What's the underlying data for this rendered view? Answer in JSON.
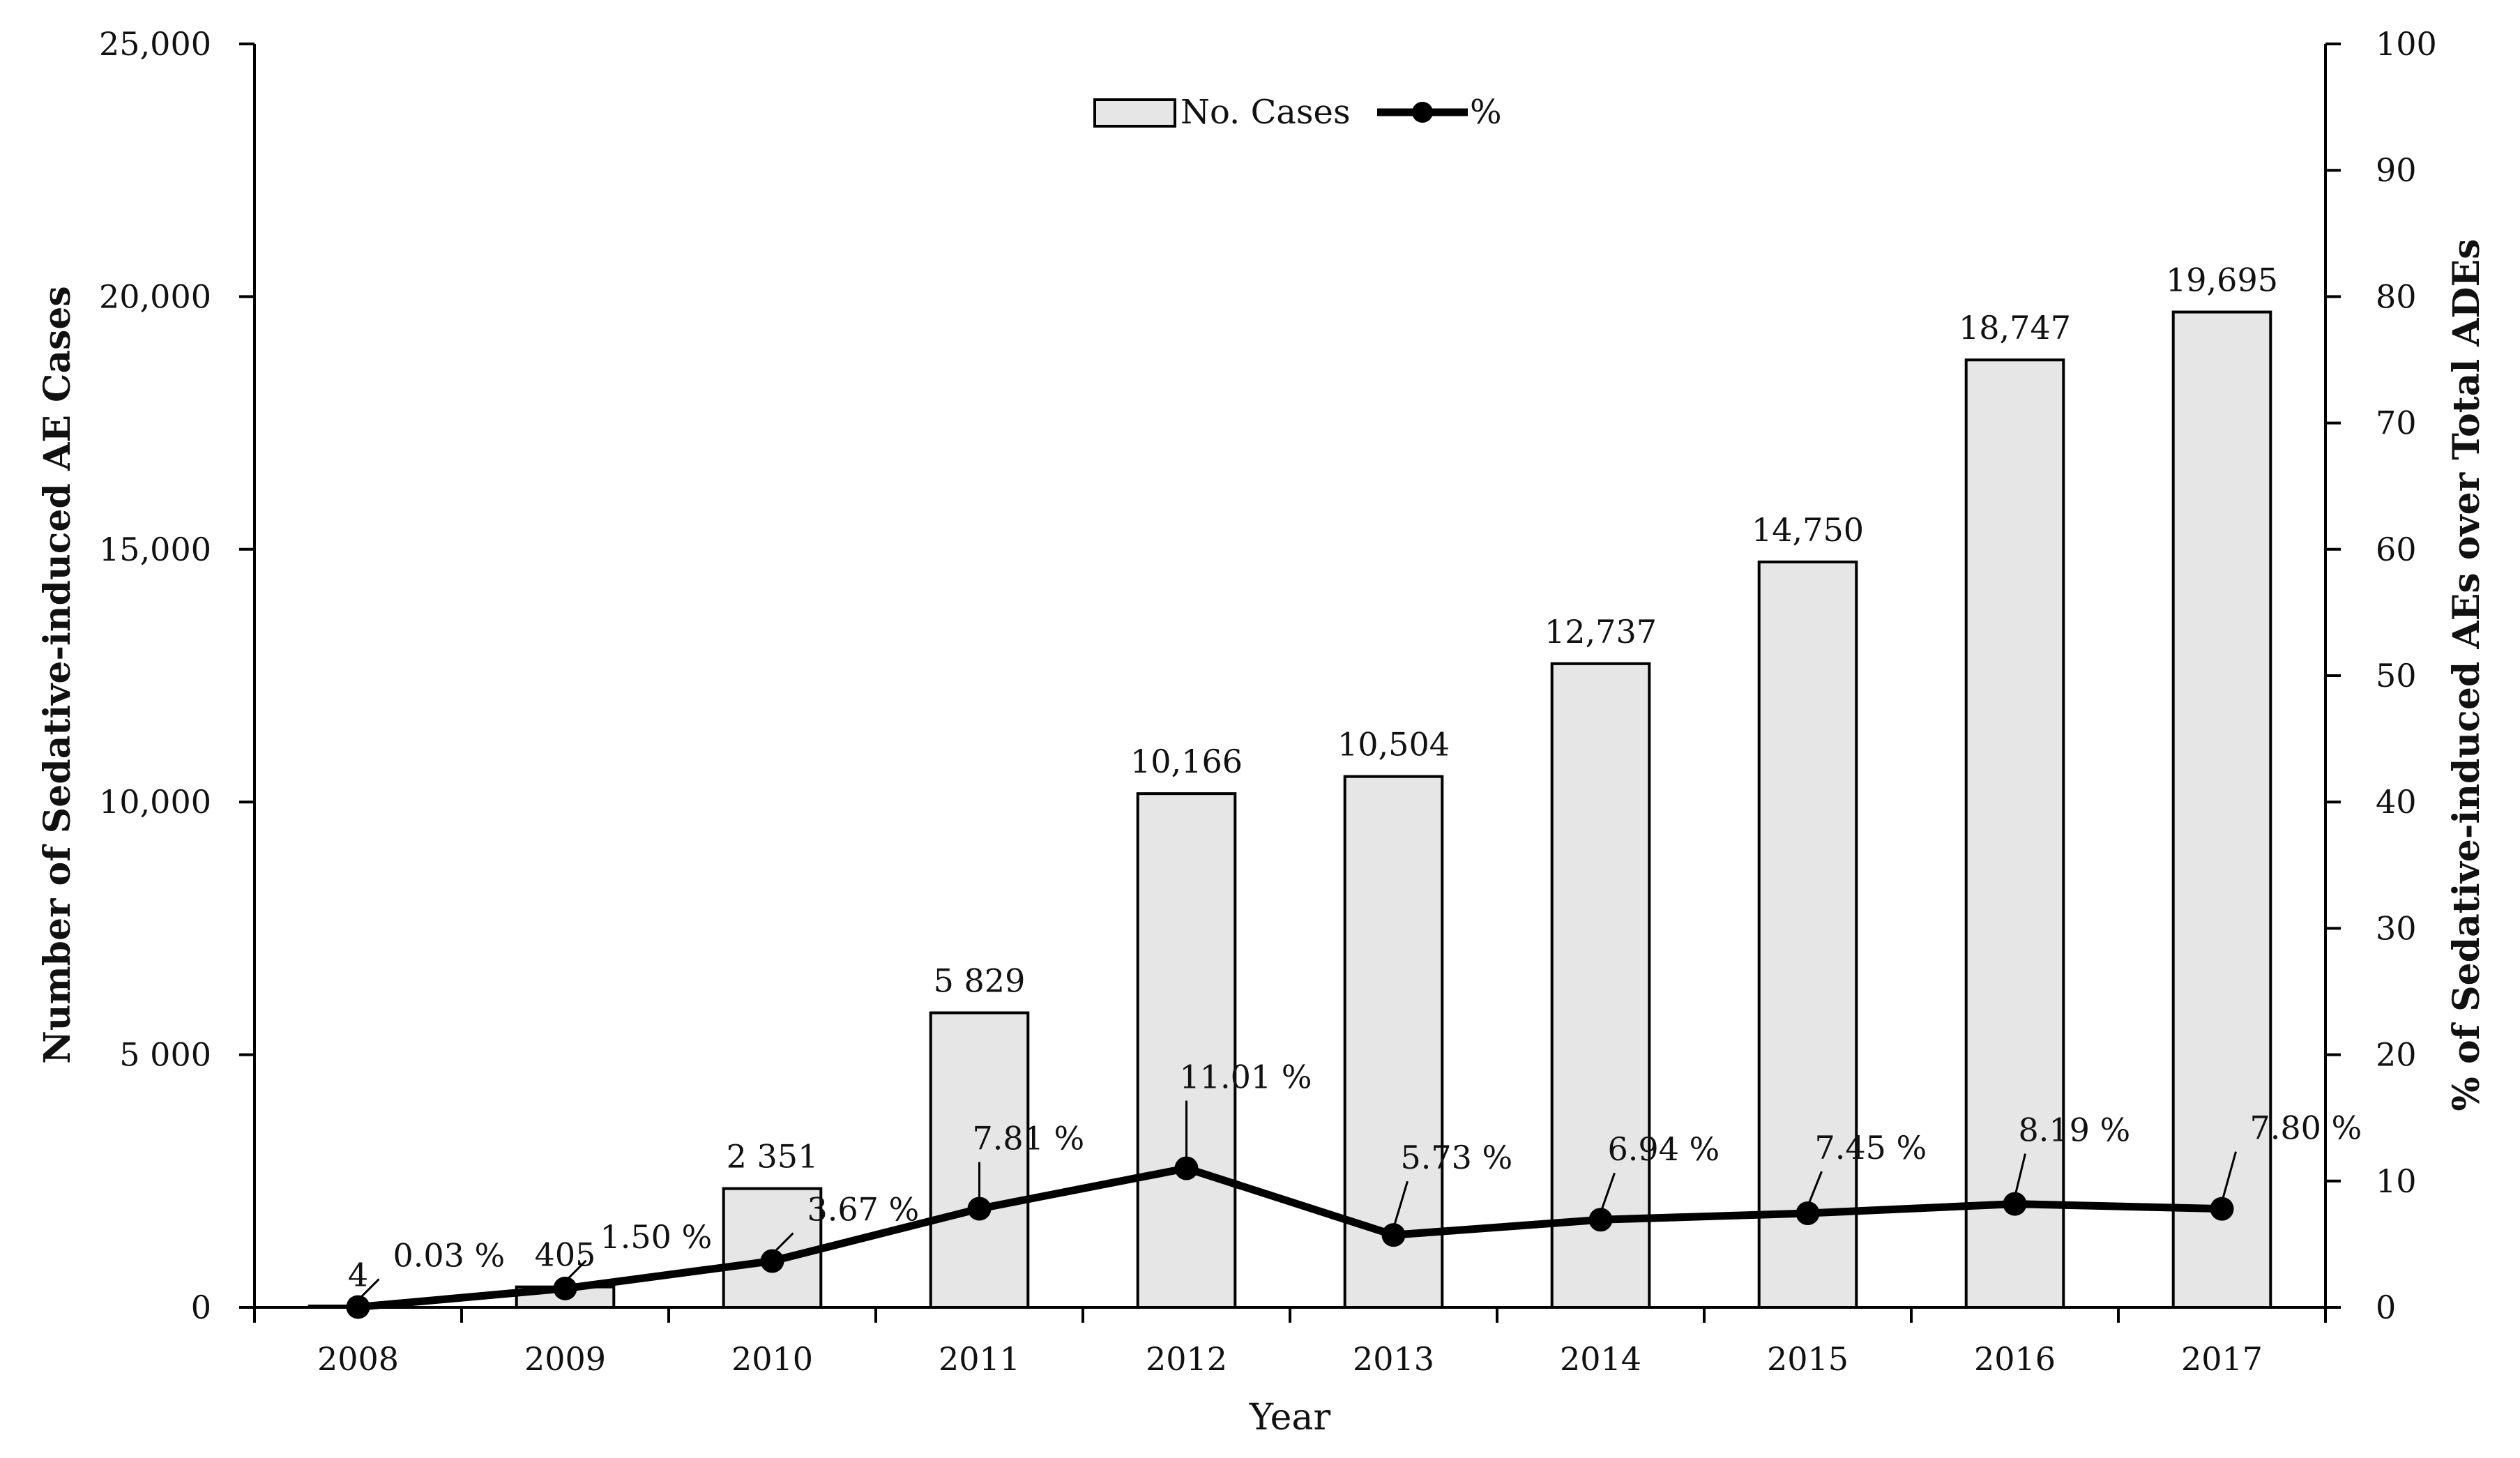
{
  "chart_data": {
    "type": "bar+line",
    "categories": [
      "2008",
      "2009",
      "2010",
      "2011",
      "2012",
      "2013",
      "2014",
      "2015",
      "2016",
      "2017"
    ],
    "series": [
      {
        "name": "No. Cases",
        "type": "bar",
        "axis": "left",
        "values": [
          4,
          405,
          2351,
          5829,
          10166,
          10504,
          12737,
          14750,
          18747,
          19695
        ],
        "labels": [
          "4",
          "405",
          "2 351",
          "5 829",
          "10,166",
          "10,504",
          "12,737",
          "14,750",
          "18,747",
          "19,695"
        ]
      },
      {
        "name": "%",
        "type": "line",
        "axis": "right",
        "values": [
          0.03,
          1.5,
          3.67,
          7.81,
          11.01,
          5.73,
          6.94,
          7.45,
          8.19,
          7.8
        ],
        "labels": [
          "0.03 %",
          "1.50 %",
          "3.67 %",
          "7.81 %",
          "11.01 %",
          "5.73 %",
          "6.94 %",
          "7.45 %",
          "8.19 %",
          "7.80 %"
        ]
      }
    ],
    "xlabel": "Year",
    "ylabel_left": "Number of Sedative-induced AE Cases",
    "ylabel_right": "% of Sedative-induced AEs over Total ADEs",
    "ylim_left": [
      0,
      25000
    ],
    "ylim_right": [
      0,
      100
    ],
    "yticks_left": [
      "0",
      "5 000",
      "10,000",
      "15,000",
      "20,000",
      "25,000"
    ],
    "yticks_right": [
      "0",
      "10",
      "20",
      "30",
      "40",
      "50",
      "60",
      "70",
      "80",
      "90",
      "100"
    ],
    "legend": {
      "position": "top-center",
      "entries": [
        "No. Cases",
        "%"
      ]
    },
    "grid": false,
    "colors": {
      "bar_fill": "#e6e6e6",
      "bar_stroke": "#000000",
      "line": "#000000",
      "axis": "#000000"
    }
  }
}
